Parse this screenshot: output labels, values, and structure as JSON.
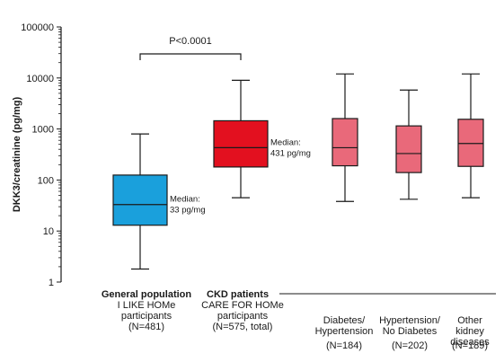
{
  "chart_data": {
    "type": "boxplot",
    "title": "",
    "ylabel": "DKK3/creatinine (pg/mg)",
    "yscale": "log",
    "ylim": [
      1,
      100000
    ],
    "yticks": [
      "1",
      "10",
      "100",
      "1000",
      "10000",
      "100000"
    ],
    "colors": {
      "general": "#1aa0dc",
      "ckd_total": "#e3101f",
      "ckd_sub": "#e9697a",
      "stroke": "#1a1a1a"
    },
    "groups": [
      {
        "name_lines": [
          "I LIKE HOMe",
          "participants",
          "(N=481)"
        ],
        "header": "General population",
        "n": 481,
        "whisker_low": 1.8,
        "q1": 13,
        "median": 33,
        "q3": 125,
        "whisker_high": 800,
        "median_label": [
          "Median:",
          "33 pg/mg"
        ],
        "color_key": "general"
      },
      {
        "name_lines": [
          "CARE FOR HOMe",
          "participants",
          "(N=575, total)"
        ],
        "header": "CKD patients",
        "n": 575,
        "whisker_low": 45,
        "q1": 180,
        "median": 431,
        "q3": 1450,
        "whisker_high": 9000,
        "median_label": [
          "Median:",
          "431 pg/mg"
        ],
        "color_key": "ckd_total"
      },
      {
        "name_lines": [
          "Diabetes/",
          "Hypertension",
          "",
          "(N=184)"
        ],
        "n": 184,
        "whisker_low": 38,
        "q1": 190,
        "median": 430,
        "q3": 1600,
        "whisker_high": 12000,
        "color_key": "ckd_sub"
      },
      {
        "name_lines": [
          "Hypertension/",
          "No Diabetes",
          "",
          "(N=202)"
        ],
        "n": 202,
        "whisker_low": 42,
        "q1": 140,
        "median": 330,
        "q3": 1150,
        "whisker_high": 5800,
        "color_key": "ckd_sub"
      },
      {
        "name_lines": [
          "Other",
          "kidney",
          "diseases",
          "(N=189)"
        ],
        "n": 189,
        "whisker_low": 45,
        "q1": 185,
        "median": 520,
        "q3": 1550,
        "whisker_high": 12000,
        "color_key": "ckd_sub"
      }
    ],
    "annotations": {
      "pvalue": "P<0.0001"
    }
  }
}
